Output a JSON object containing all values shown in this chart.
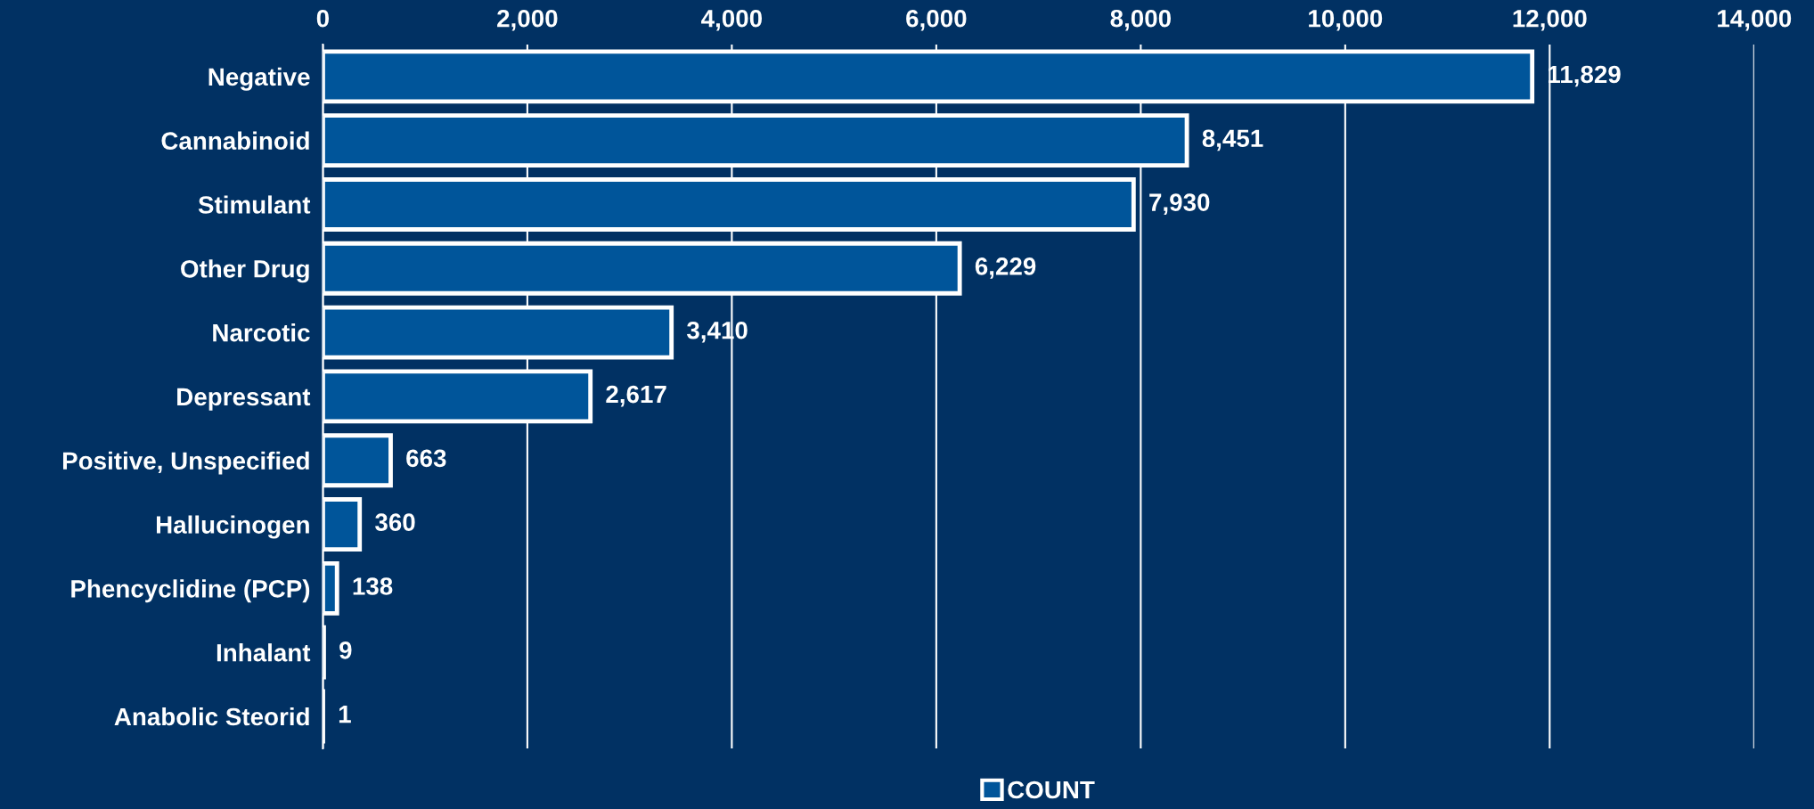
{
  "chart_data": {
    "type": "bar",
    "orientation": "horizontal",
    "categories": [
      "Negative",
      "Cannabinoid",
      "Stimulant",
      "Other Drug",
      "Narcotic",
      "Depressant",
      "Positive, Unspecified",
      "Hallucinogen",
      "Phencyclidine (PCP)",
      "Inhalant",
      "Anabolic Steorid"
    ],
    "series": [
      {
        "name": "COUNT",
        "color": "#00559a",
        "values": [
          11829,
          8451,
          7930,
          6229,
          3410,
          2617,
          663,
          360,
          138,
          9,
          1
        ]
      }
    ],
    "value_labels": [
      "11,829",
      "8,451",
      "7,930",
      "6,229",
      "3,410",
      "2,617",
      "663",
      "360",
      "138",
      "9",
      "1"
    ],
    "xlim": [
      0,
      14000
    ],
    "xticks": [
      0,
      {
        "value": 2000,
        "label": "2,000"
      },
      {
        "value": 4000,
        "label": "4,000"
      },
      {
        "value": 6000,
        "label": "6,000"
      },
      {
        "value": 8000,
        "label": "8,000"
      },
      {
        "value": 10000,
        "label": "10,000"
      },
      {
        "value": 12000,
        "label": "12,000"
      },
      {
        "value": 14000,
        "label": "14,000"
      }
    ],
    "grid": "x",
    "legend": "bottom"
  }
}
